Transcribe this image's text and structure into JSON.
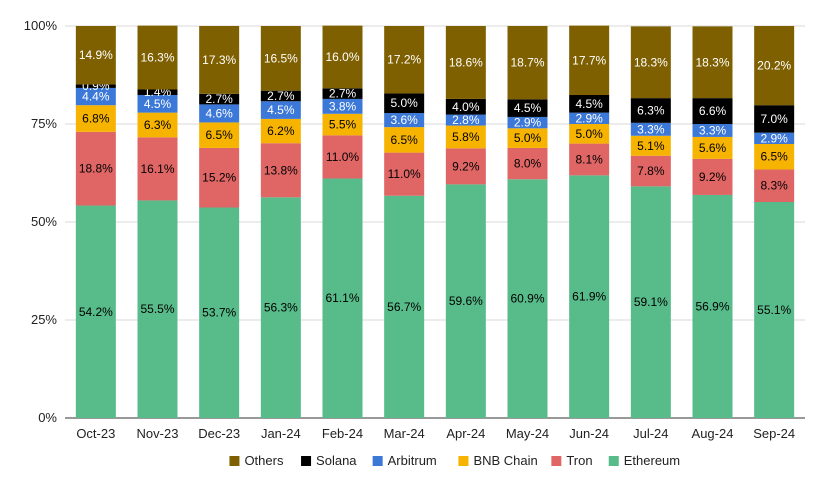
{
  "chart_data": {
    "type": "bar",
    "stacked": true,
    "percent": true,
    "categories": [
      "Oct-23",
      "Nov-23",
      "Dec-23",
      "Jan-24",
      "Feb-24",
      "Mar-24",
      "Apr-24",
      "May-24",
      "Jun-24",
      "Jul-24",
      "Aug-24",
      "Sep-24"
    ],
    "series": [
      {
        "name": "Ethereum",
        "color": "#57bb8a",
        "label_color": "#000000",
        "values": [
          54.2,
          55.5,
          53.7,
          56.3,
          61.1,
          56.7,
          59.6,
          60.9,
          61.9,
          59.1,
          56.9,
          55.1
        ]
      },
      {
        "name": "Tron",
        "color": "#e06666",
        "label_color": "#000000",
        "values": [
          18.8,
          16.1,
          15.2,
          13.8,
          11.0,
          11.0,
          9.2,
          8.0,
          8.1,
          7.8,
          9.2,
          8.3
        ]
      },
      {
        "name": "BNB Chain",
        "color": "#f6b300",
        "label_color": "#000000",
        "values": [
          6.8,
          6.3,
          6.5,
          6.2,
          5.5,
          6.5,
          5.8,
          5.0,
          5.0,
          5.1,
          5.6,
          6.5
        ]
      },
      {
        "name": "Arbitrum",
        "color": "#3c78d8",
        "label_color": "#ffffff",
        "values": [
          4.4,
          4.5,
          4.6,
          4.5,
          3.8,
          3.6,
          2.8,
          2.9,
          2.9,
          3.3,
          3.3,
          2.9
        ]
      },
      {
        "name": "Solana",
        "color": "#000000",
        "label_color": "#ffffff",
        "values": [
          0.9,
          1.4,
          2.7,
          2.7,
          2.7,
          5.0,
          4.0,
          4.5,
          4.5,
          6.3,
          6.6,
          7.0
        ]
      },
      {
        "name": "Others",
        "color": "#7f6000",
        "label_color": "#ffffff",
        "values": [
          14.9,
          16.3,
          17.3,
          16.5,
          16.0,
          17.2,
          18.6,
          18.7,
          17.7,
          18.3,
          18.3,
          20.2
        ]
      }
    ],
    "value_labels": [
      [
        "54.2%",
        "55.5%",
        "53.7%",
        "56.3%",
        "61.1%",
        "56.7%",
        "59.6%",
        "60.9%",
        "61.9%",
        "59.1%",
        "56.9%",
        "55.1%"
      ],
      [
        "18.8%",
        "16.1%",
        "15.2%",
        "13.8%",
        "11.0%",
        "11.0%",
        "9.2%",
        "8.0%",
        "8.1%",
        "7.8%",
        "9.2%",
        "8.3%"
      ],
      [
        "6.8%",
        "6.3%",
        "6.5%",
        "6.2%",
        "5.5%",
        "6.5%",
        "5.8%",
        "5.0%",
        "5.0%",
        "5.1%",
        "5.6%",
        "6.5%"
      ],
      [
        "4.4%",
        "4.5%",
        "4.6%",
        "4.5%",
        "3.8%",
        "3.6%",
        "2.8%",
        "2.9%",
        "2.9%",
        "3.3%",
        "3.3%",
        "2.9%"
      ],
      [
        "0.9%",
        "1.4%",
        "2.7%",
        "2.7%",
        "2.7%",
        "5.0%",
        "4.0%",
        "4.5%",
        "4.5%",
        "6.3%",
        "6.6%",
        "7.0%"
      ],
      [
        "14.9%",
        "16.3%",
        "17.3%",
        "16.5%",
        "16.0%",
        "17.2%",
        "18.6%",
        "18.7%",
        "17.7%",
        "18.3%",
        "18.3%",
        "20.2%"
      ]
    ],
    "y_ticks": [
      0,
      25,
      50,
      75,
      100
    ],
    "y_tick_labels": [
      "0%",
      "25%",
      "50%",
      "75%",
      "100%"
    ],
    "ylim": [
      0,
      100
    ],
    "legend": {
      "placement": "bottom",
      "order": [
        "Others",
        "Solana",
        "Arbitrum",
        "BNB Chain",
        "Tron",
        "Ethereum"
      ]
    },
    "title": "",
    "xlabel": "",
    "ylabel": ""
  }
}
